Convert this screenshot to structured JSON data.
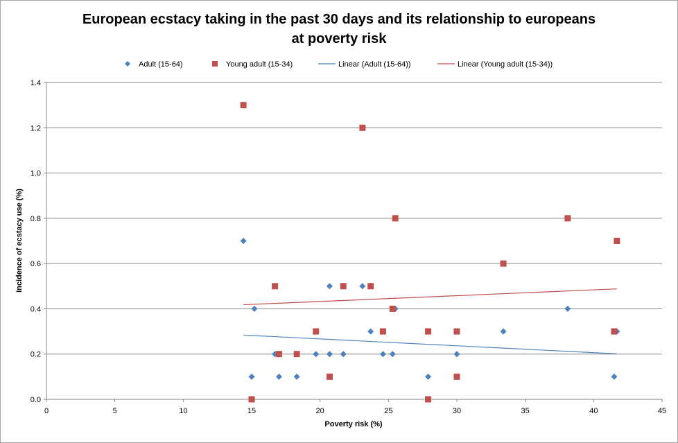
{
  "chart_data": {
    "type": "scatter",
    "title": "European ecstacy taking in the past 30 days and its relationship to europeans",
    "title_line2": "at poverty risk",
    "xlabel": "Poverty risk (%)",
    "ylabel": "Incidence of ecstacy  use (%)",
    "xlim": [
      0,
      45
    ],
    "ylim": [
      0,
      1.4
    ],
    "x_ticks": [
      "0",
      "5",
      "10",
      "15",
      "20",
      "25",
      "30",
      "35",
      "40",
      "45"
    ],
    "y_ticks": [
      "0.0",
      "0.2",
      "0.4",
      "0.6",
      "0.8",
      "1.0",
      "1.2",
      "1.4"
    ],
    "grid": "horizontal",
    "legend_position": "top",
    "series": [
      {
        "name": "Adult (15-64)",
        "marker": "diamond",
        "color": "#4f81bd",
        "points": [
          [
            14.4,
            0.7
          ],
          [
            15.0,
            0.1
          ],
          [
            15.2,
            0.4
          ],
          [
            16.7,
            0.2
          ],
          [
            17.0,
            0.1
          ],
          [
            18.3,
            0.1
          ],
          [
            19.7,
            0.2
          ],
          [
            20.7,
            0.5
          ],
          [
            20.7,
            0.2
          ],
          [
            21.7,
            0.2
          ],
          [
            23.1,
            0.5
          ],
          [
            23.7,
            0.3
          ],
          [
            24.6,
            0.2
          ],
          [
            25.3,
            0.2
          ],
          [
            25.5,
            0.4
          ],
          [
            27.9,
            0.1
          ],
          [
            30.0,
            0.2
          ],
          [
            33.4,
            0.3
          ],
          [
            38.1,
            0.4
          ],
          [
            41.5,
            0.1
          ],
          [
            41.7,
            0.3
          ]
        ]
      },
      {
        "name": "Young adult (15-34)",
        "marker": "square",
        "color": "#c0504d",
        "points": [
          [
            14.4,
            1.3
          ],
          [
            15.0,
            0.0
          ],
          [
            16.7,
            0.5
          ],
          [
            17.0,
            0.2
          ],
          [
            18.3,
            0.2
          ],
          [
            19.7,
            0.3
          ],
          [
            20.7,
            0.1
          ],
          [
            21.7,
            0.5
          ],
          [
            23.1,
            1.2
          ],
          [
            23.7,
            0.5
          ],
          [
            24.6,
            0.3
          ],
          [
            25.3,
            0.4
          ],
          [
            25.5,
            0.8
          ],
          [
            27.9,
            0.0
          ],
          [
            27.9,
            0.3
          ],
          [
            30.0,
            0.1
          ],
          [
            30.0,
            0.3
          ],
          [
            33.4,
            0.6
          ],
          [
            38.1,
            0.8
          ],
          [
            41.5,
            0.3
          ],
          [
            41.7,
            0.7
          ]
        ]
      }
    ],
    "trendlines": [
      {
        "name": "Linear (Adult (15-64))",
        "color": "#4f81bd",
        "x": [
          14.4,
          41.7
        ],
        "y": [
          0.284,
          0.201
        ]
      },
      {
        "name": "Linear (Young adult (15-34))",
        "color": "#c0504d",
        "x": [
          14.4,
          41.7
        ],
        "y": [
          0.418,
          0.488
        ]
      }
    ]
  }
}
